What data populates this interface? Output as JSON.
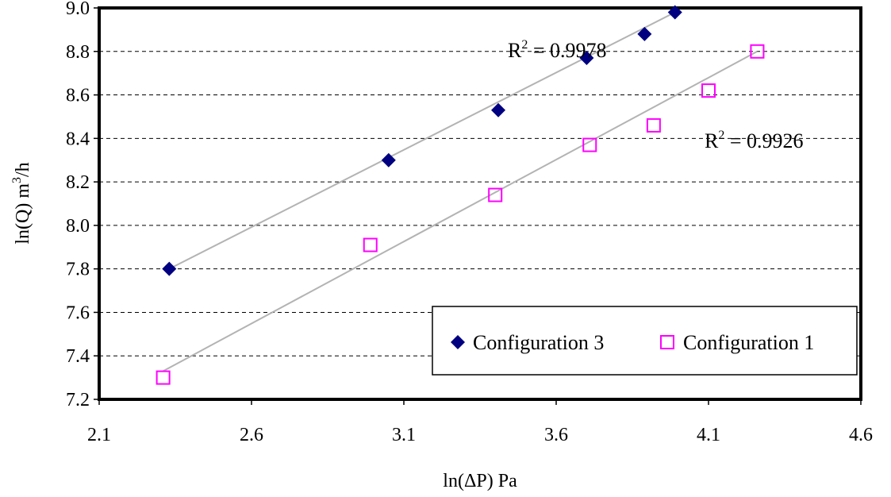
{
  "chart_data": {
    "type": "scatter",
    "xlabel": "ln(ΔP) Pa",
    "ylabel": {
      "base": "ln(Q) m",
      "sup": "3",
      "rest": "/h"
    },
    "xlim": [
      2.1,
      4.6
    ],
    "ylim": [
      7.2,
      9.0
    ],
    "xticks": [
      "2.1",
      "2.6",
      "3.1",
      "3.6",
      "4.1",
      "4.6"
    ],
    "yticks": [
      "7.2",
      "7.4",
      "7.6",
      "7.8",
      "8.0",
      "8.2",
      "8.4",
      "8.6",
      "8.8",
      "9.0"
    ],
    "grid": "horizontal-dashed",
    "legend_position": "bottom-right",
    "series": [
      {
        "name": "Configuration 3",
        "marker": "diamond",
        "color": "#000080",
        "x": [
          2.33,
          3.05,
          3.41,
          3.7,
          3.89,
          3.99
        ],
        "y": [
          7.8,
          8.3,
          8.53,
          8.77,
          8.88,
          8.98
        ],
        "trendline": {
          "x": [
            2.33,
            3.99
          ],
          "y": [
            7.8,
            8.98
          ],
          "r2": {
            "base": "R",
            "sup": "2",
            "rest": " = 0.9978"
          }
        }
      },
      {
        "name": "Configuration 1",
        "marker": "square-open",
        "color": "#ff00ff",
        "x": [
          2.31,
          2.99,
          3.4,
          3.71,
          3.92,
          4.1,
          4.26
        ],
        "y": [
          7.3,
          7.91,
          8.14,
          8.37,
          8.46,
          8.62,
          8.8
        ],
        "trendline": {
          "x": [
            2.31,
            4.26
          ],
          "y": [
            7.33,
            8.8
          ],
          "r2": {
            "base": "R",
            "sup": "2",
            "rest": " = 0.9926"
          }
        }
      }
    ],
    "trendline_color": "#b3b3b3"
  }
}
